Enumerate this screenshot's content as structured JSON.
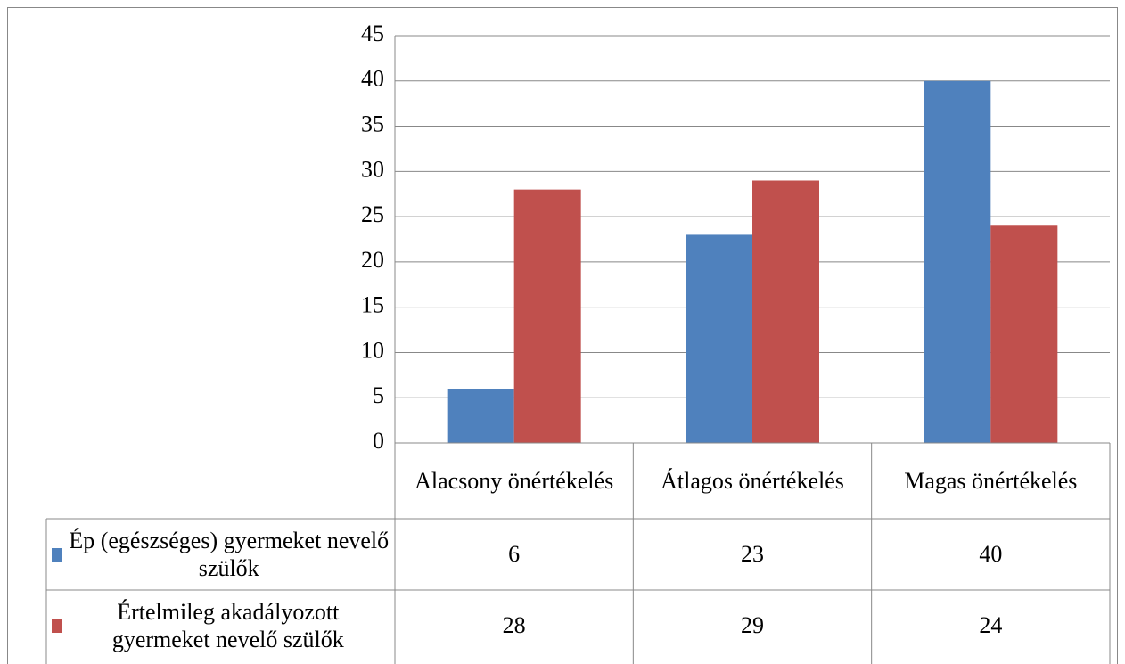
{
  "chart_data": {
    "type": "bar",
    "categories": [
      "Alacsony önértékelés",
      "Átlagos önértékelés",
      "Magas önértékelés"
    ],
    "series": [
      {
        "name": "Ép (egészséges) gyermeket nevelő szülők",
        "color": "#4f81bd",
        "values": [
          6,
          23,
          40
        ]
      },
      {
        "name": "Értelmileg akadályozott gyermeket nevelő szülők",
        "color": "#c0504d",
        "values": [
          28,
          29,
          24
        ]
      }
    ],
    "ylim": [
      0,
      45
    ],
    "yticks": [
      0,
      5,
      10,
      15,
      20,
      25,
      30,
      35,
      40,
      45
    ],
    "grid": true,
    "data_table": true
  }
}
